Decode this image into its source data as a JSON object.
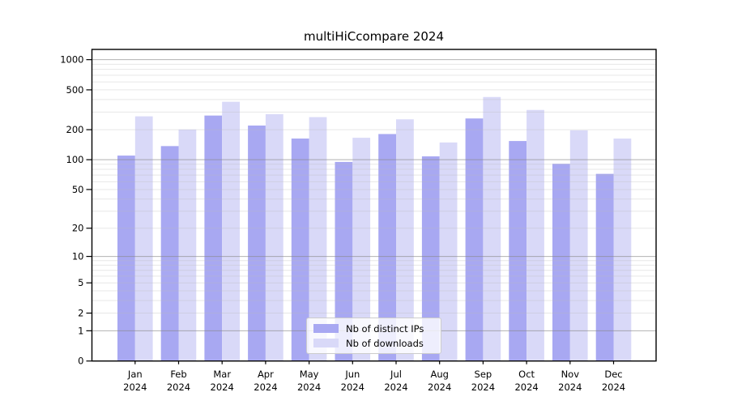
{
  "chart_data": {
    "type": "bar",
    "title": "multiHiCcompare 2024",
    "categories": [
      "Jan",
      "Feb",
      "Mar",
      "Apr",
      "May",
      "Jun",
      "Jul",
      "Aug",
      "Sep",
      "Oct",
      "Nov",
      "Dec"
    ],
    "category_year": "2024",
    "series": [
      {
        "name": "Nb of distinct IPs",
        "color": "#a8a8f2",
        "values": [
          110,
          137,
          277,
          220,
          163,
          95,
          181,
          108,
          259,
          154,
          91,
          72
        ]
      },
      {
        "name": "Nb of downloads",
        "color": "#d9d9f8",
        "values": [
          272,
          201,
          380,
          286,
          267,
          166,
          254,
          149,
          424,
          315,
          197,
          163
        ]
      }
    ],
    "y_axis": {
      "scale": "log1p",
      "ticks": [
        0,
        1,
        2,
        5,
        10,
        20,
        50,
        100,
        200,
        500,
        1000
      ],
      "ylim": [
        0,
        1250
      ],
      "grid": true
    },
    "legend": {
      "position": "bottom-center"
    },
    "colors": {
      "axis": "#000000",
      "text": "#000000",
      "major_grid": "#888888",
      "minor_grid": "#bbbbbb"
    }
  }
}
